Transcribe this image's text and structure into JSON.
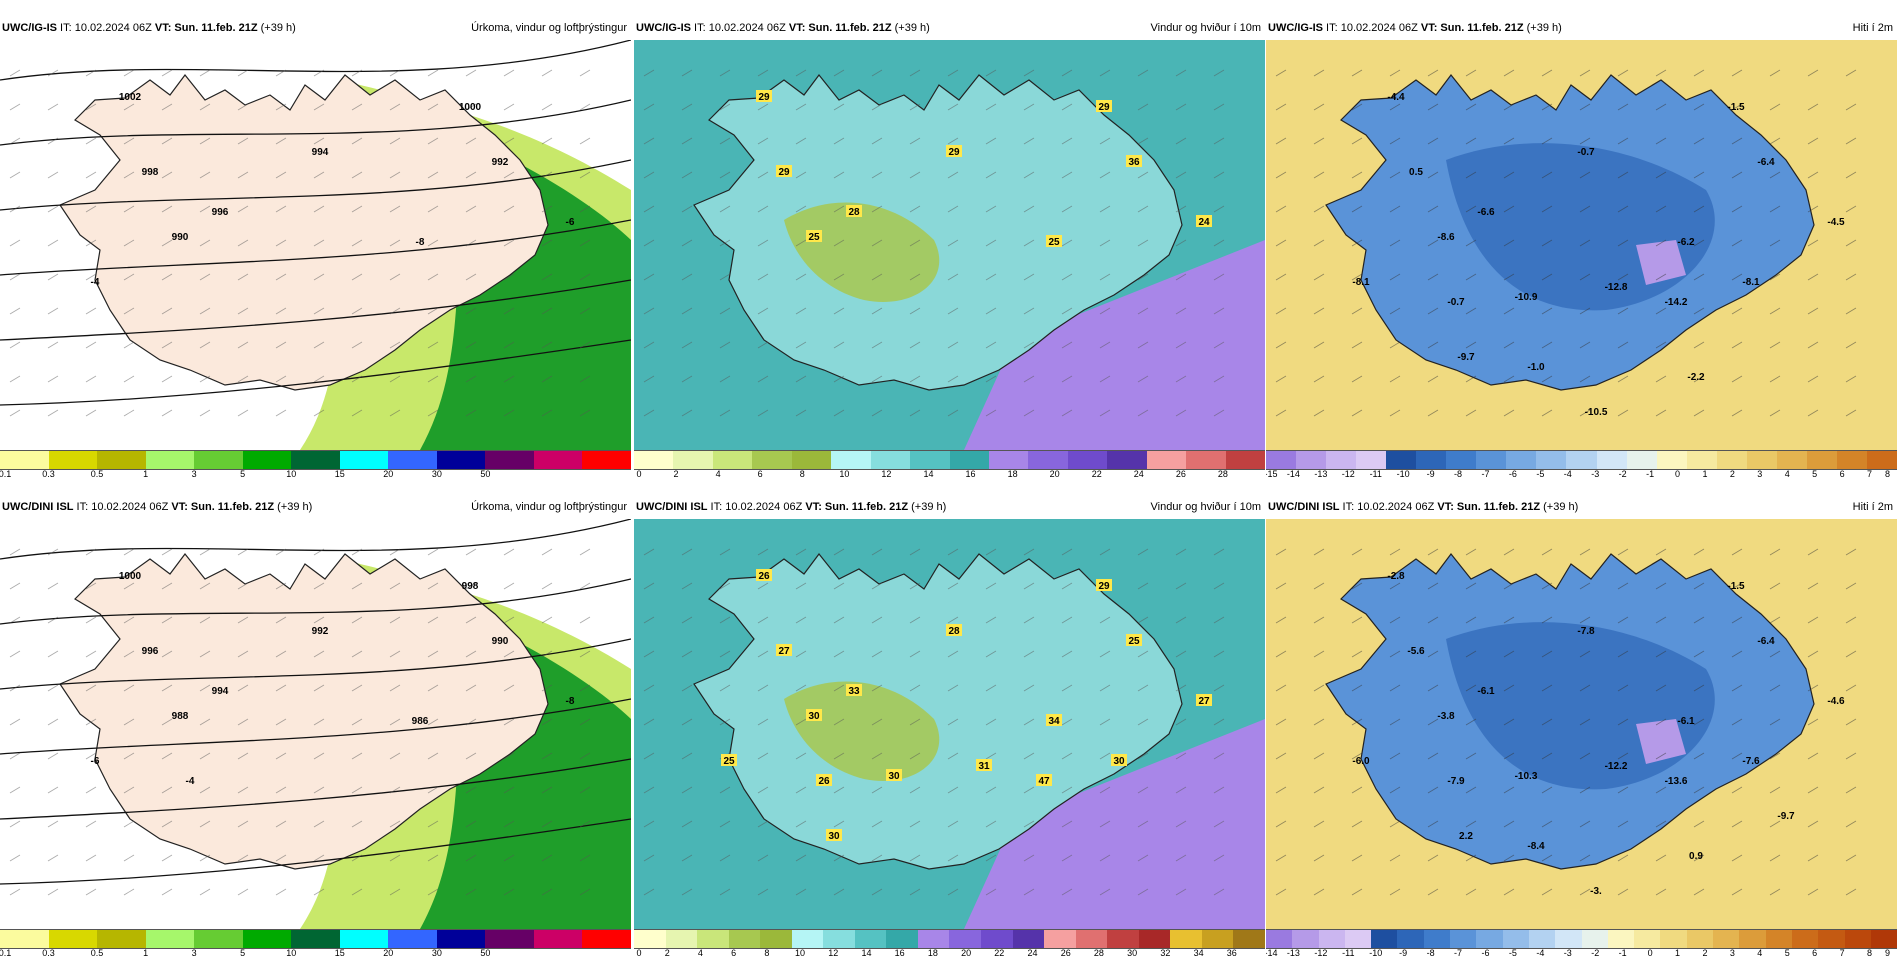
{
  "panels": [
    {
      "row": 0,
      "col": 0,
      "model": "UWC/IG-IS",
      "init": "IT: 10.02.2024 06Z",
      "valid": "VT: Sun. 11.feb. 21Z",
      "lead": "(+39 h)",
      "title": "Úrkoma, vindur og loftþrýstingur",
      "colors": [
        "#fbfb9e",
        "#d8d800",
        "#b6b600",
        "#a6f76b",
        "#66cc33",
        "#00aa00",
        "#006633",
        "#00ffff",
        "#3366ff",
        "#000099",
        "#660066",
        "#cc0066",
        "#ff0000"
      ],
      "ticks": [
        "0.1",
        "0.3",
        "0.5",
        "1",
        "3",
        "5",
        "10",
        "15",
        "20",
        "30",
        "50"
      ],
      "labels": [
        "1002",
        "1000",
        "998",
        "996",
        "994",
        "992",
        "990",
        "-8",
        "-6",
        "-4"
      ]
    },
    {
      "row": 0,
      "col": 1,
      "model": "UWC/IG-IS",
      "init": "IT: 10.02.2024 06Z",
      "valid": "VT: Sun. 11.feb. 21Z",
      "lead": "(+39 h)",
      "title": "Vindur og hviður í 10m",
      "colors": [
        "#ffffcc",
        "#e6f5b0",
        "#c9e67a",
        "#a7c850",
        "#9bb83a",
        "#b5f5f5",
        "#86dede",
        "#55c2c2",
        "#34a8a8",
        "#a886e8",
        "#8866dd",
        "#6f4bcc",
        "#5533aa",
        "#f5a0a0",
        "#e07070",
        "#c04040"
      ],
      "ticks": [
        "0",
        "2",
        "4",
        "6",
        "8",
        "10",
        "12",
        "14",
        "16",
        "18",
        "20",
        "22",
        "24",
        "26",
        "28"
      ],
      "labels": [
        "29",
        "29",
        "29",
        "28",
        "29",
        "36",
        "25",
        "25",
        "24"
      ]
    },
    {
      "row": 0,
      "col": 2,
      "model": "UWC/IG-IS",
      "init": "IT: 10.02.2024 06Z",
      "valid": "VT: Sun. 11.feb. 21Z",
      "lead": "(+39 h)",
      "title": "Hiti í 2m",
      "colors": [
        "#9a7ae0",
        "#b59ae8",
        "#cbb6f0",
        "#dccaf4",
        "#1e4fa0",
        "#2d66b8",
        "#3f7ccb",
        "#5a93d8",
        "#77a9e2",
        "#94bdea",
        "#b3d2f1",
        "#d2e6f7",
        "#e7f2ec",
        "#fbf6c0",
        "#f6eaa0",
        "#f0da80",
        "#eac866",
        "#e4b450",
        "#dc9c3a",
        "#d48428",
        "#cc6c1a"
      ],
      "ticks": [
        "-15",
        "-14",
        "-13",
        "-12",
        "-11",
        "-10",
        "-9",
        "-8",
        "-7",
        "-6",
        "-5",
        "-4",
        "-3",
        "-2",
        "-1",
        "0",
        "1",
        "2",
        "3",
        "4",
        "5",
        "6",
        "7",
        "8"
      ],
      "labels": [
        "-4.4",
        "-1.5",
        "0.5",
        "-6.6",
        "-0.7",
        "-6.4",
        "-8.6",
        "-6.2",
        "-4.5",
        "-8.1",
        "-0.7",
        "-10.9",
        "-12.8",
        "-14.2",
        "-8.1",
        "-9.7",
        "-1.0",
        "-2.2",
        "-10.5"
      ]
    },
    {
      "row": 1,
      "col": 0,
      "model": "UWC/DINI ISL",
      "init": "IT: 10.02.2024 06Z",
      "valid": "VT: Sun. 11.feb. 21Z",
      "lead": "(+39 h)",
      "title": "Úrkoma, vindur og loftþrýstingur",
      "colors": [
        "#fbfb9e",
        "#d8d800",
        "#b6b600",
        "#a6f76b",
        "#66cc33",
        "#00aa00",
        "#006633",
        "#00ffff",
        "#3366ff",
        "#000099",
        "#660066",
        "#cc0066",
        "#ff0000"
      ],
      "ticks": [
        "0.1",
        "0.3",
        "0.5",
        "1",
        "3",
        "5",
        "10",
        "15",
        "20",
        "30",
        "50"
      ],
      "labels": [
        "1000",
        "998",
        "996",
        "994",
        "992",
        "990",
        "988",
        "986",
        "-8",
        "-6",
        "-4"
      ]
    },
    {
      "row": 1,
      "col": 1,
      "model": "UWC/DINI ISL",
      "init": "IT: 10.02.2024 06Z",
      "valid": "VT: Sun. 11.feb. 21Z",
      "lead": "(+39 h)",
      "title": "Vindur og hviður í 10m",
      "colors": [
        "#ffffcc",
        "#e6f5b0",
        "#c9e67a",
        "#a7c850",
        "#9bb83a",
        "#b5f5f5",
        "#86dede",
        "#55c2c2",
        "#34a8a8",
        "#a886e8",
        "#8866dd",
        "#6f4bcc",
        "#5533aa",
        "#f5a0a0",
        "#e07070",
        "#c04040",
        "#a82828",
        "#e8c030",
        "#c8a020",
        "#a07818"
      ],
      "ticks": [
        "0",
        "2",
        "4",
        "6",
        "8",
        "10",
        "12",
        "14",
        "16",
        "18",
        "20",
        "22",
        "24",
        "26",
        "28",
        "30",
        "32",
        "34",
        "36"
      ],
      "labels": [
        "26",
        "29",
        "27",
        "33",
        "28",
        "25",
        "30",
        "34",
        "27",
        "25",
        "26",
        "30",
        "31",
        "47",
        "30",
        "30"
      ]
    },
    {
      "row": 1,
      "col": 2,
      "model": "UWC/DINI ISL",
      "init": "IT: 10.02.2024 06Z",
      "valid": "VT: Sun. 11.feb. 21Z",
      "lead": "(+39 h)",
      "title": "Hiti í 2m",
      "colors": [
        "#9a7ae0",
        "#b59ae8",
        "#cbb6f0",
        "#dccaf4",
        "#1e4fa0",
        "#2d66b8",
        "#3f7ccb",
        "#5a93d8",
        "#77a9e2",
        "#94bdea",
        "#b3d2f1",
        "#d2e6f7",
        "#e7f2ec",
        "#fbf6c0",
        "#f6eaa0",
        "#f0da80",
        "#eac866",
        "#e4b450",
        "#dc9c3a",
        "#d48428",
        "#cc6c1a",
        "#c45a12",
        "#bb480c",
        "#b03808"
      ],
      "ticks": [
        "-14",
        "-13",
        "-12",
        "-11",
        "-10",
        "-9",
        "-8",
        "-7",
        "-6",
        "-5",
        "-4",
        "-3",
        "-2",
        "-1",
        "0",
        "1",
        "2",
        "3",
        "4",
        "5",
        "6",
        "7",
        "8",
        "9"
      ],
      "labels": [
        "-2.8",
        "-1.5",
        "-5.6",
        "-6.1",
        "-7.8",
        "-6.4",
        "-3.8",
        "-6.1",
        "-4.6",
        "-6.0",
        "-7.9",
        "-10.3",
        "-12.2",
        "-13.6",
        "-7.6",
        "2.2",
        "-8.4",
        "0.9",
        "-3.",
        "-9.7"
      ]
    }
  ]
}
